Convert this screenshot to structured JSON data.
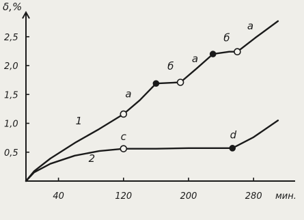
{
  "chart_data": {
    "type": "line",
    "ylabel": "δ,%",
    "xlabel": "мин.",
    "y_ticks": [
      "0,5",
      "1,0",
      "1,5",
      "2,0",
      "2,5"
    ],
    "x_ticks": [
      "40",
      "120",
      "200",
      "280"
    ],
    "xlim": [
      0,
      320
    ],
    "ylim": [
      0,
      2.8
    ],
    "series": [
      {
        "name": "1",
        "x": [
          0,
          10,
          30,
          60,
          90,
          120,
          140,
          160,
          190,
          210,
          230,
          250,
          260,
          282,
          310
        ],
        "y": [
          0,
          0.17,
          0.39,
          0.66,
          0.9,
          1.16,
          1.4,
          1.69,
          1.71,
          1.95,
          2.2,
          2.24,
          2.24,
          2.48,
          2.77
        ]
      },
      {
        "name": "2",
        "x": [
          0,
          10,
          30,
          60,
          90,
          120,
          160,
          200,
          254,
          280,
          310
        ],
        "y": [
          0,
          0.15,
          0.3,
          0.44,
          0.52,
          0.56,
          0.56,
          0.57,
          0.57,
          0.76,
          1.05
        ]
      }
    ],
    "points": [
      {
        "x": 120,
        "y": 1.16,
        "fill": "open"
      },
      {
        "x": 160,
        "y": 1.69,
        "fill": "solid"
      },
      {
        "x": 190,
        "y": 1.71,
        "fill": "open"
      },
      {
        "x": 230,
        "y": 2.2,
        "fill": "solid"
      },
      {
        "x": 260,
        "y": 2.24,
        "fill": "open"
      },
      {
        "x": 120,
        "y": 0.56,
        "fill": "open"
      },
      {
        "x": 254,
        "y": 0.57,
        "fill": "solid"
      }
    ],
    "annotations": [
      {
        "text": "а",
        "x": 126,
        "y": 1.45
      },
      {
        "text": "б",
        "x": 178,
        "y": 1.93
      },
      {
        "text": "а",
        "x": 208,
        "y": 2.06
      },
      {
        "text": "б",
        "x": 247,
        "y": 2.42
      },
      {
        "text": "а",
        "x": 276,
        "y": 2.63
      },
      {
        "text": "с",
        "x": 120,
        "y": 0.71
      },
      {
        "text": "d",
        "x": 255,
        "y": 0.74
      },
      {
        "text": "1",
        "x": 65,
        "y": 0.98
      },
      {
        "text": "2",
        "x": 81,
        "y": 0.33
      }
    ]
  }
}
